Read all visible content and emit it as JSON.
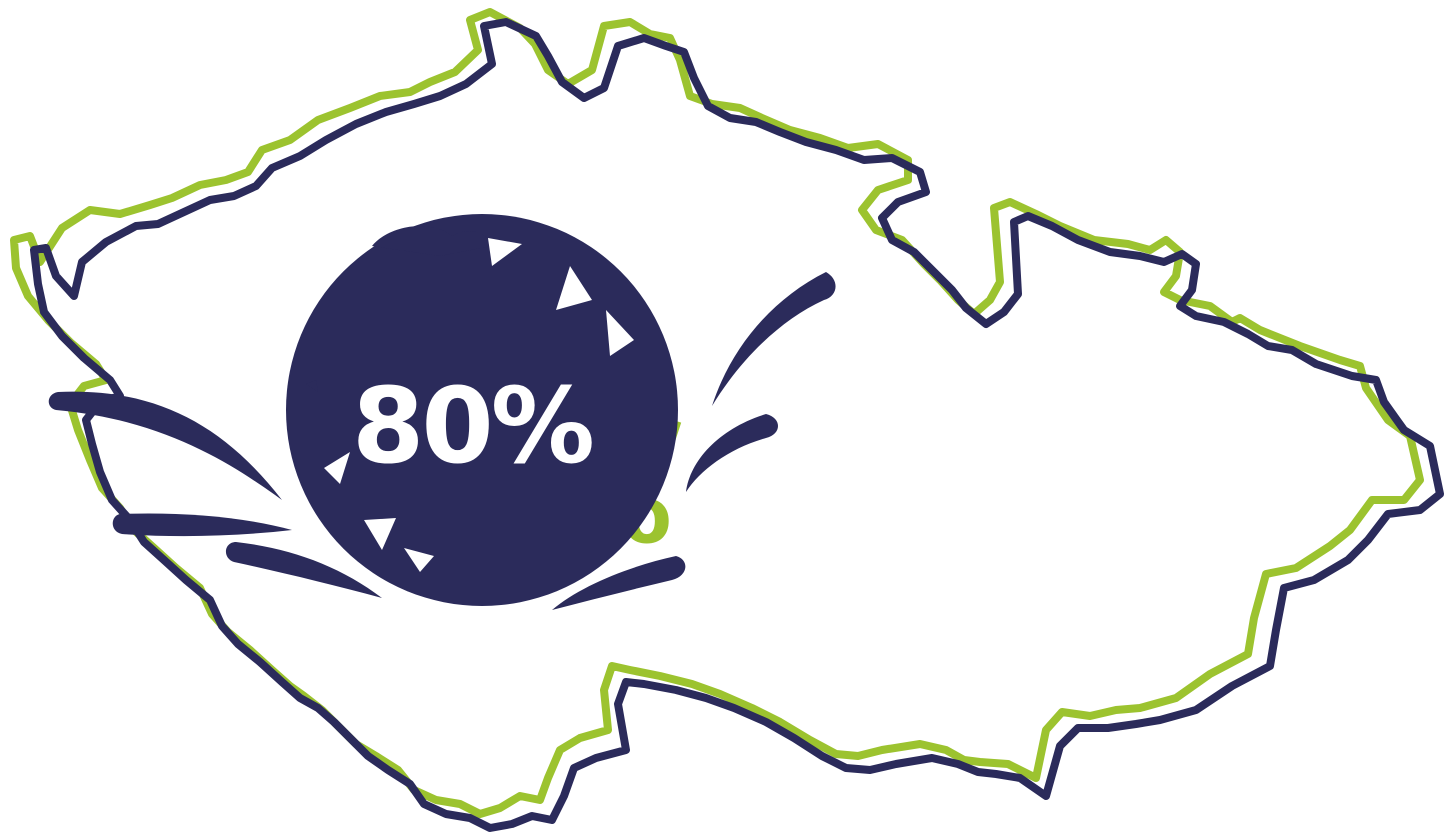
{
  "graphic": {
    "value_label": "80%",
    "shadow_label": "%",
    "colors": {
      "navy": "#2b2b5b",
      "green": "#9cc32f",
      "background": "#ffffff",
      "text_on_badge": "#ffffff"
    },
    "icon": "czech-republic-map-outline"
  }
}
